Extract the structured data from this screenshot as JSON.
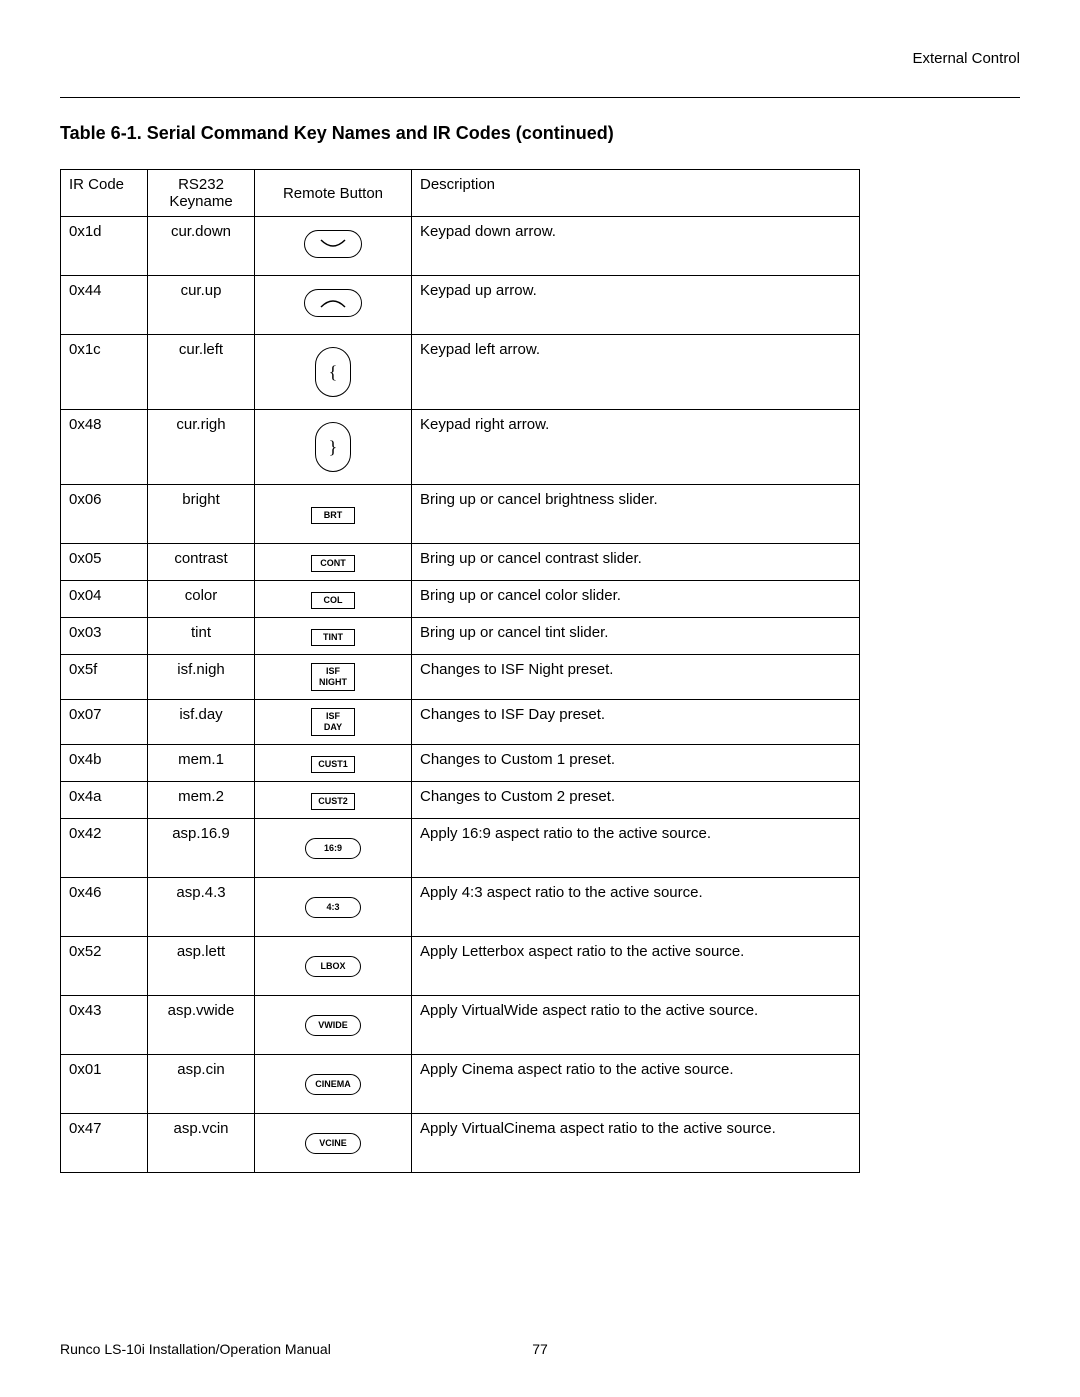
{
  "header": {
    "section": "External Control"
  },
  "title": "Table 6-1. Serial Command Key Names and IR Codes (continued)",
  "columns": {
    "ir": "IR Code",
    "rs": "RS232\nKeyname",
    "btn": "Remote Button",
    "desc": "Description"
  },
  "rows": [
    {
      "ir": "0x1d",
      "rs": "cur.down",
      "btn_type": "oval-wide-down",
      "btn_label": "",
      "desc": "Keypad down arrow.",
      "h": "med"
    },
    {
      "ir": "0x44",
      "rs": "cur.up",
      "btn_type": "oval-wide-up",
      "btn_label": "",
      "desc": "Keypad up arrow.",
      "h": "med"
    },
    {
      "ir": "0x1c",
      "rs": "cur.left",
      "btn_type": "oval-tall",
      "btn_label": "{",
      "desc": "Keypad left arrow.",
      "h": "tall"
    },
    {
      "ir": "0x48",
      "rs": "cur.righ",
      "btn_type": "oval-tall",
      "btn_label": "}",
      "desc": "Keypad right arrow.",
      "h": "tall"
    },
    {
      "ir": "0x06",
      "rs": "bright",
      "btn_type": "rect",
      "btn_label": "BRT",
      "desc": "Bring up or cancel brightness slider.",
      "h": "med"
    },
    {
      "ir": "0x05",
      "rs": "contrast",
      "btn_type": "rect",
      "btn_label": "CONT",
      "desc": "Bring up or cancel contrast slider.",
      "h": "short"
    },
    {
      "ir": "0x04",
      "rs": "color",
      "btn_type": "rect",
      "btn_label": "COL",
      "desc": "Bring up or cancel color slider.",
      "h": "short"
    },
    {
      "ir": "0x03",
      "rs": "tint",
      "btn_type": "rect",
      "btn_label": "TINT",
      "desc": "Bring up or cancel tint slider.",
      "h": "short"
    },
    {
      "ir": "0x5f",
      "rs": "isf.nigh",
      "btn_type": "rect",
      "btn_label": "ISF\nNIGHT",
      "desc": "Changes to ISF Night preset.",
      "h": "short"
    },
    {
      "ir": "0x07",
      "rs": "isf.day",
      "btn_type": "rect",
      "btn_label": "ISF\nDAY",
      "desc": "Changes to ISF Day preset.",
      "h": "short"
    },
    {
      "ir": "0x4b",
      "rs": "mem.1",
      "btn_type": "rect",
      "btn_label": "CUST1",
      "desc": "Changes to Custom 1 preset.",
      "h": "short"
    },
    {
      "ir": "0x4a",
      "rs": "mem.2",
      "btn_type": "rect",
      "btn_label": "CUST2",
      "desc": "Changes to Custom 2 preset.",
      "h": "short"
    },
    {
      "ir": "0x42",
      "rs": "asp.16.9",
      "btn_type": "pill",
      "btn_label": "16:9",
      "desc": "Apply 16:9 aspect ratio to the active source.",
      "h": "med"
    },
    {
      "ir": "0x46",
      "rs": "asp.4.3",
      "btn_type": "pill",
      "btn_label": "4:3",
      "desc": "Apply 4:3 aspect ratio to the active source.",
      "h": "med"
    },
    {
      "ir": "0x52",
      "rs": "asp.lett",
      "btn_type": "pill",
      "btn_label": "LBOX",
      "desc": "Apply Letterbox aspect ratio to the active source.",
      "h": "med"
    },
    {
      "ir": "0x43",
      "rs": "asp.vwide",
      "btn_type": "pill",
      "btn_label": "VWIDE",
      "desc": "Apply VirtualWide aspect ratio to the active source.",
      "h": "med"
    },
    {
      "ir": "0x01",
      "rs": "asp.cin",
      "btn_type": "pill",
      "btn_label": "CINEMA",
      "desc": "Apply Cinema aspect ratio to the active source.",
      "h": "med"
    },
    {
      "ir": "0x47",
      "rs": "asp.vcin",
      "btn_type": "pill",
      "btn_label": "VCINE",
      "desc": "Apply VirtualCinema aspect ratio to the active source.",
      "h": "med"
    }
  ],
  "footer": {
    "left": "Runco LS-10i Installation/Operation Manual",
    "page": "77"
  },
  "colors": {
    "text": "#000000",
    "background": "#ffffff",
    "border": "#000000"
  }
}
